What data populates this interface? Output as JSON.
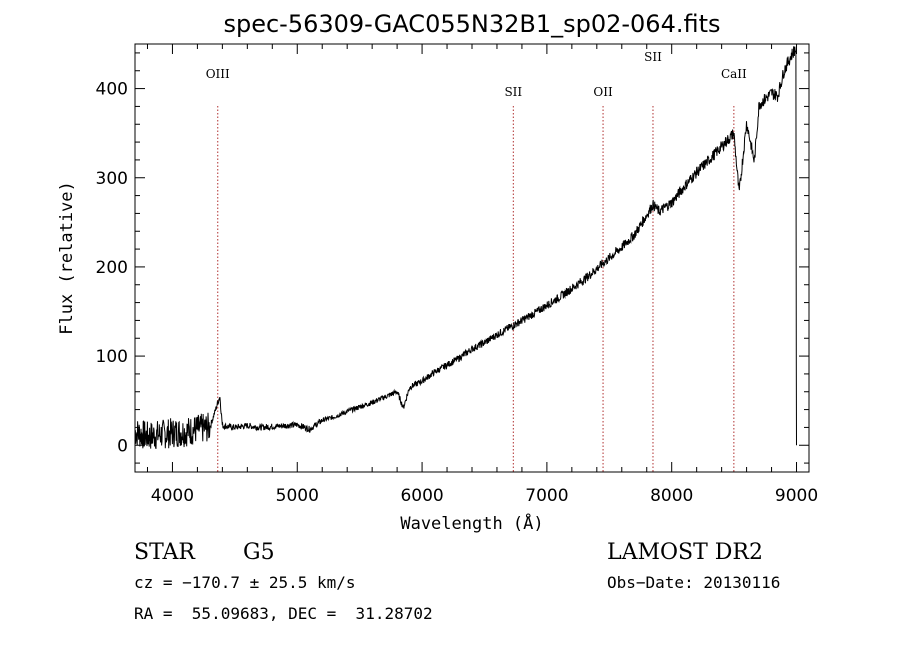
{
  "chart_data": {
    "type": "line",
    "title": "spec-56309-GAC055N32B1_sp02-064.fits",
    "xlabel": "Wavelength (Å)",
    "ylabel": "Flux (relative)",
    "xlim": [
      3700,
      9100
    ],
    "ylim": [
      -30,
      450
    ],
    "x_ticks": [
      4000,
      5000,
      6000,
      7000,
      8000,
      9000
    ],
    "y_ticks": [
      0,
      100,
      200,
      300,
      400
    ],
    "grid": false,
    "series": [
      {
        "x": [
          3700,
          3800,
          3900,
          4000,
          4100,
          4200,
          4300,
          4380,
          4400,
          4500,
          4600,
          4700,
          4800,
          4900,
          5000,
          5100,
          5200,
          5300,
          5400,
          5500,
          5600,
          5700,
          5800,
          5850,
          5900,
          6000,
          6100,
          6200,
          6300,
          6400,
          6500,
          6600,
          6700,
          6800,
          6900,
          7000,
          7100,
          7200,
          7300,
          7400,
          7500,
          7600,
          7700,
          7800,
          7850,
          7900,
          8000,
          8100,
          8200,
          8300,
          8400,
          8498,
          8540,
          8600,
          8662,
          8700,
          8800,
          8850,
          8900,
          8950,
          8990,
          9000
        ],
        "y": [
          15,
          10,
          12,
          14,
          15,
          18,
          20,
          55,
          22,
          20,
          22,
          20,
          21,
          22,
          23,
          18,
          28,
          32,
          38,
          43,
          48,
          54,
          60,
          42,
          65,
          72,
          82,
          90,
          98,
          108,
          115,
          124,
          132,
          140,
          148,
          157,
          166,
          176,
          186,
          198,
          210,
          222,
          236,
          258,
          270,
          262,
          272,
          290,
          306,
          320,
          335,
          350,
          282,
          362,
          318,
          382,
          395,
          392,
          420,
          435,
          445,
          0
        ]
      }
    ],
    "lines": [
      {
        "label": "OIII",
        "x": 4363,
        "pos": "top"
      },
      {
        "label": "SII",
        "x": 6731,
        "pos": "low"
      },
      {
        "label": "OII",
        "x": 7450,
        "pos": "low"
      },
      {
        "label": "SII",
        "x": 7850,
        "pos": "top"
      },
      {
        "label": "CaII",
        "x": 8498,
        "pos": "mid"
      }
    ]
  },
  "info": {
    "object_class": "STAR",
    "subclass": "G5",
    "survey": "LAMOST DR2",
    "cz": "cz = −170.7 ± 25.5 km/s",
    "obs_date": "Obs−Date: 20130116",
    "radec": "RA =  55.09683, DEC =  31.28702"
  },
  "colors": {
    "spectrum": "#000000",
    "line_marker": "#b03030",
    "axis": "#000000"
  }
}
